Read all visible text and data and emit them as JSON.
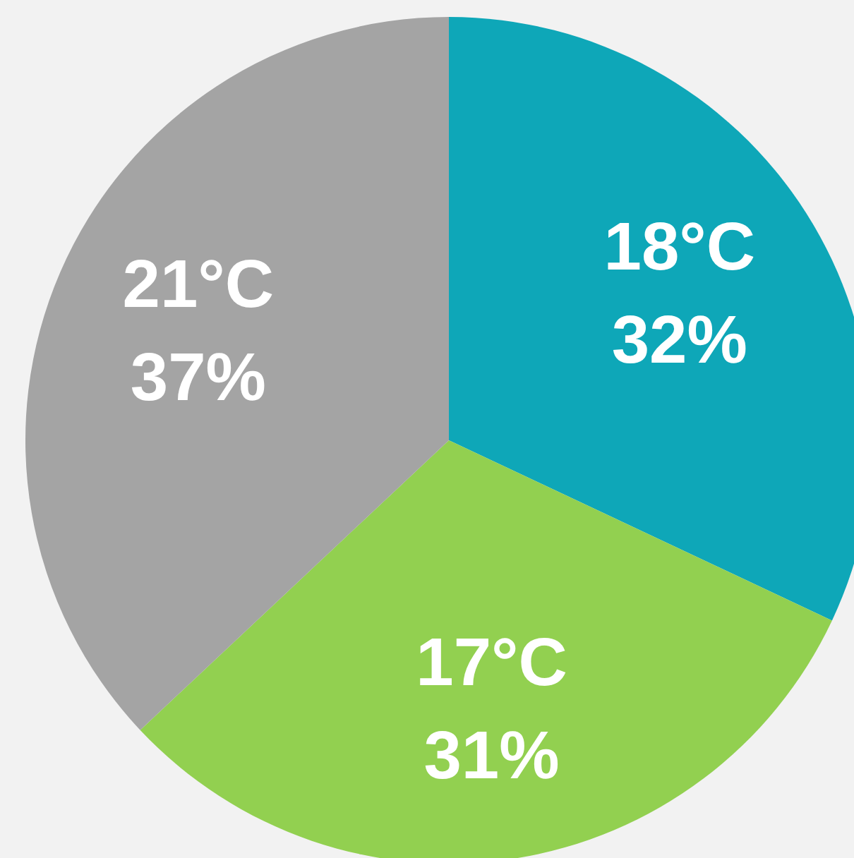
{
  "chart_data": {
    "type": "pie",
    "categories": [
      "18°C",
      "17°C",
      "21°C"
    ],
    "values": [
      32,
      31,
      37
    ],
    "colors": [
      "#0ea7b8",
      "#92d050",
      "#a4a4a4"
    ],
    "value_labels": [
      "32%",
      "31%",
      "37%"
    ]
  }
}
